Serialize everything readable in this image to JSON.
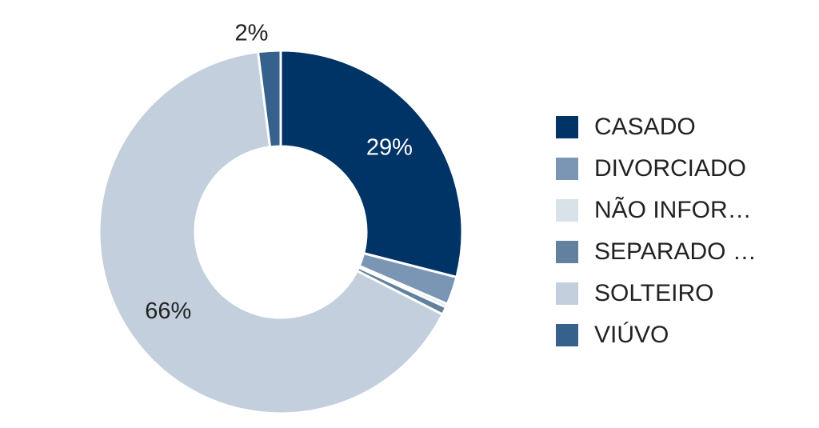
{
  "chart_data": {
    "type": "pie",
    "style": "donut",
    "legend_position": "right",
    "categories": [
      "CASADO",
      "DIVORCIADO",
      "NÃO INFOR…",
      "SEPARADO …",
      "SOLTEIRO",
      "VIÚVO"
    ],
    "values": [
      29,
      2.5,
      0.3,
      0.7,
      65.5,
      2
    ],
    "data_labels": [
      "29%",
      "",
      "",
      "",
      "66%",
      "2%"
    ],
    "colors": [
      "#003366",
      "#7b96b4",
      "#d9e1e9",
      "#61819f",
      "#c3cfdc",
      "#35618c"
    ],
    "label_colors": [
      "#ffffff",
      "#222222",
      "#222222",
      "#222222",
      "#222222",
      "#222222"
    ]
  }
}
